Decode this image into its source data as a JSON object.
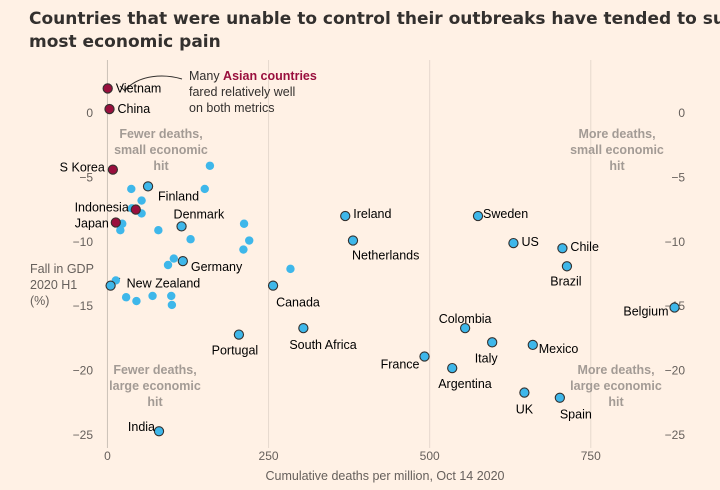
{
  "title": [
    "Countries that were unable to control their outbreaks have tended to suffer the",
    "most economic pain"
  ],
  "colors": {
    "background": "#fff1e5",
    "asian": "#990f3d",
    "highlight": "#33302e",
    "other": "#3eb7ea",
    "grid": "#e6d9ce",
    "zero": "#ccc1b7",
    "quadrant_text": "#a39b95"
  },
  "annotation": {
    "line1_prefix": "Many ",
    "line1_highlight": "Asian countries",
    "line2": "fared relatively well",
    "line3": "on both metrics"
  },
  "quadrants": {
    "top_left": [
      "Fewer deaths,",
      "small economic",
      "hit"
    ],
    "top_right": [
      "More deaths,",
      "small economic",
      "hit"
    ],
    "bottom_left": [
      "Fewer deaths,",
      "large economic",
      "hit"
    ],
    "bottom_right": [
      "More deaths,",
      "large economic",
      "hit"
    ]
  },
  "chart_data": {
    "type": "scatter",
    "xlabel": "Cumulative deaths per million, Oct 14 2020",
    "ylabel": [
      "Fall in GDP",
      "2020 H1",
      "(%)"
    ],
    "xlim": [
      -10,
      890
    ],
    "ylim": [
      -26,
      2.4
    ],
    "xticks": [
      0,
      250,
      500,
      750
    ],
    "xtick_labels": [
      "0",
      "250",
      "500",
      "750"
    ],
    "yticks": [
      0,
      -5,
      -10,
      -15,
      -20,
      -25
    ],
    "ytick_labels": [
      "0",
      "−5",
      "−10",
      "−15",
      "−20",
      "−25"
    ],
    "grid": "vertical",
    "labeled_points": [
      {
        "name": "Vietnam",
        "x": 0.4,
        "y": 1.9,
        "group": "asian"
      },
      {
        "name": "China",
        "x": 3.2,
        "y": 0.3,
        "group": "asian"
      },
      {
        "name": "S Korea",
        "x": 8.4,
        "y": -4.4,
        "group": "asian"
      },
      {
        "name": "Indonesia",
        "x": 44,
        "y": -7.5,
        "group": "asian"
      },
      {
        "name": "Japan",
        "x": 13,
        "y": -8.5,
        "group": "asian"
      },
      {
        "name": "Finland",
        "x": 63,
        "y": -5.7,
        "group": "highlight"
      },
      {
        "name": "Denmark",
        "x": 115,
        "y": -8.8,
        "group": "highlight"
      },
      {
        "name": "Germany",
        "x": 117,
        "y": -11.5,
        "group": "highlight"
      },
      {
        "name": "New Zealand",
        "x": 4.9,
        "y": -13.4,
        "group": "highlight"
      },
      {
        "name": "Portugal",
        "x": 204,
        "y": -17.2,
        "group": "highlight"
      },
      {
        "name": "Canada",
        "x": 257,
        "y": -13.4,
        "group": "highlight"
      },
      {
        "name": "South Africa",
        "x": 304,
        "y": -16.7,
        "group": "highlight"
      },
      {
        "name": "India",
        "x": 80,
        "y": -24.7,
        "group": "highlight"
      },
      {
        "name": "Ireland",
        "x": 369,
        "y": -8.0,
        "group": "highlight"
      },
      {
        "name": "Netherlands",
        "x": 381,
        "y": -9.9,
        "group": "highlight"
      },
      {
        "name": "Sweden",
        "x": 575,
        "y": -8.0,
        "group": "highlight"
      },
      {
        "name": "US",
        "x": 630,
        "y": -10.1,
        "group": "highlight"
      },
      {
        "name": "Chile",
        "x": 706,
        "y": -10.5,
        "group": "highlight"
      },
      {
        "name": "Brazil",
        "x": 713,
        "y": -11.9,
        "group": "highlight"
      },
      {
        "name": "Belgium",
        "x": 880,
        "y": -15.1,
        "group": "highlight"
      },
      {
        "name": "Colombia",
        "x": 555,
        "y": -16.7,
        "group": "highlight"
      },
      {
        "name": "Italy",
        "x": 597,
        "y": -17.8,
        "group": "highlight"
      },
      {
        "name": "Mexico",
        "x": 660,
        "y": -18.0,
        "group": "highlight"
      },
      {
        "name": "France",
        "x": 492,
        "y": -18.9,
        "group": "highlight"
      },
      {
        "name": "Argentina",
        "x": 535,
        "y": -19.8,
        "group": "highlight"
      },
      {
        "name": "UK",
        "x": 647,
        "y": -21.7,
        "group": "highlight"
      },
      {
        "name": "Spain",
        "x": 702,
        "y": -22.1,
        "group": "highlight"
      }
    ],
    "other_points": [
      {
        "x": 159,
        "y": -4.1
      },
      {
        "x": 151,
        "y": -5.9
      },
      {
        "x": 37,
        "y": -5.9
      },
      {
        "x": 53,
        "y": -6.8
      },
      {
        "x": 38,
        "y": -7.4
      },
      {
        "x": 53,
        "y": -7.8
      },
      {
        "x": 23,
        "y": -8.6
      },
      {
        "x": 20,
        "y": -9.1
      },
      {
        "x": 79,
        "y": -9.1
      },
      {
        "x": 212,
        "y": -8.6
      },
      {
        "x": 220,
        "y": -9.9
      },
      {
        "x": 211,
        "y": -10.6
      },
      {
        "x": 129,
        "y": -9.8
      },
      {
        "x": 103,
        "y": -11.3
      },
      {
        "x": 94,
        "y": -11.8
      },
      {
        "x": 284,
        "y": -12.1
      },
      {
        "x": 13,
        "y": -13.0
      },
      {
        "x": 29,
        "y": -14.3
      },
      {
        "x": 45,
        "y": -14.6
      },
      {
        "x": 70,
        "y": -14.2
      },
      {
        "x": 99,
        "y": -14.2
      },
      {
        "x": 100,
        "y": -14.9
      }
    ]
  }
}
